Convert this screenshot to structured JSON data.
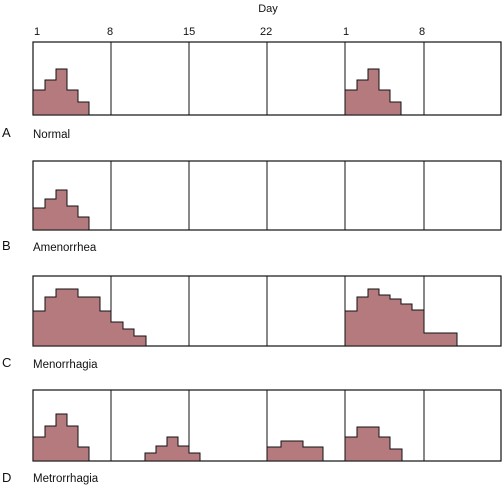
{
  "axis_title": "Day",
  "ticks": [
    {
      "label": "1"
    },
    {
      "label": "8"
    },
    {
      "label": "15"
    },
    {
      "label": "22"
    },
    {
      "label": "1"
    },
    {
      "label": "8"
    }
  ],
  "colors": {
    "bleeding_fill": "#b57a7e",
    "outline": "#111111"
  },
  "panels": [
    {
      "id": "normal",
      "letter": "A",
      "label": "Normal"
    },
    {
      "id": "amenorrhea",
      "letter": "B",
      "label": "Amenorrhea"
    },
    {
      "id": "menorrhagia",
      "letter": "C",
      "label": "Menorrhagia"
    },
    {
      "id": "metrorrhagia",
      "letter": "D",
      "label": "Metrorrhagia"
    }
  ]
}
